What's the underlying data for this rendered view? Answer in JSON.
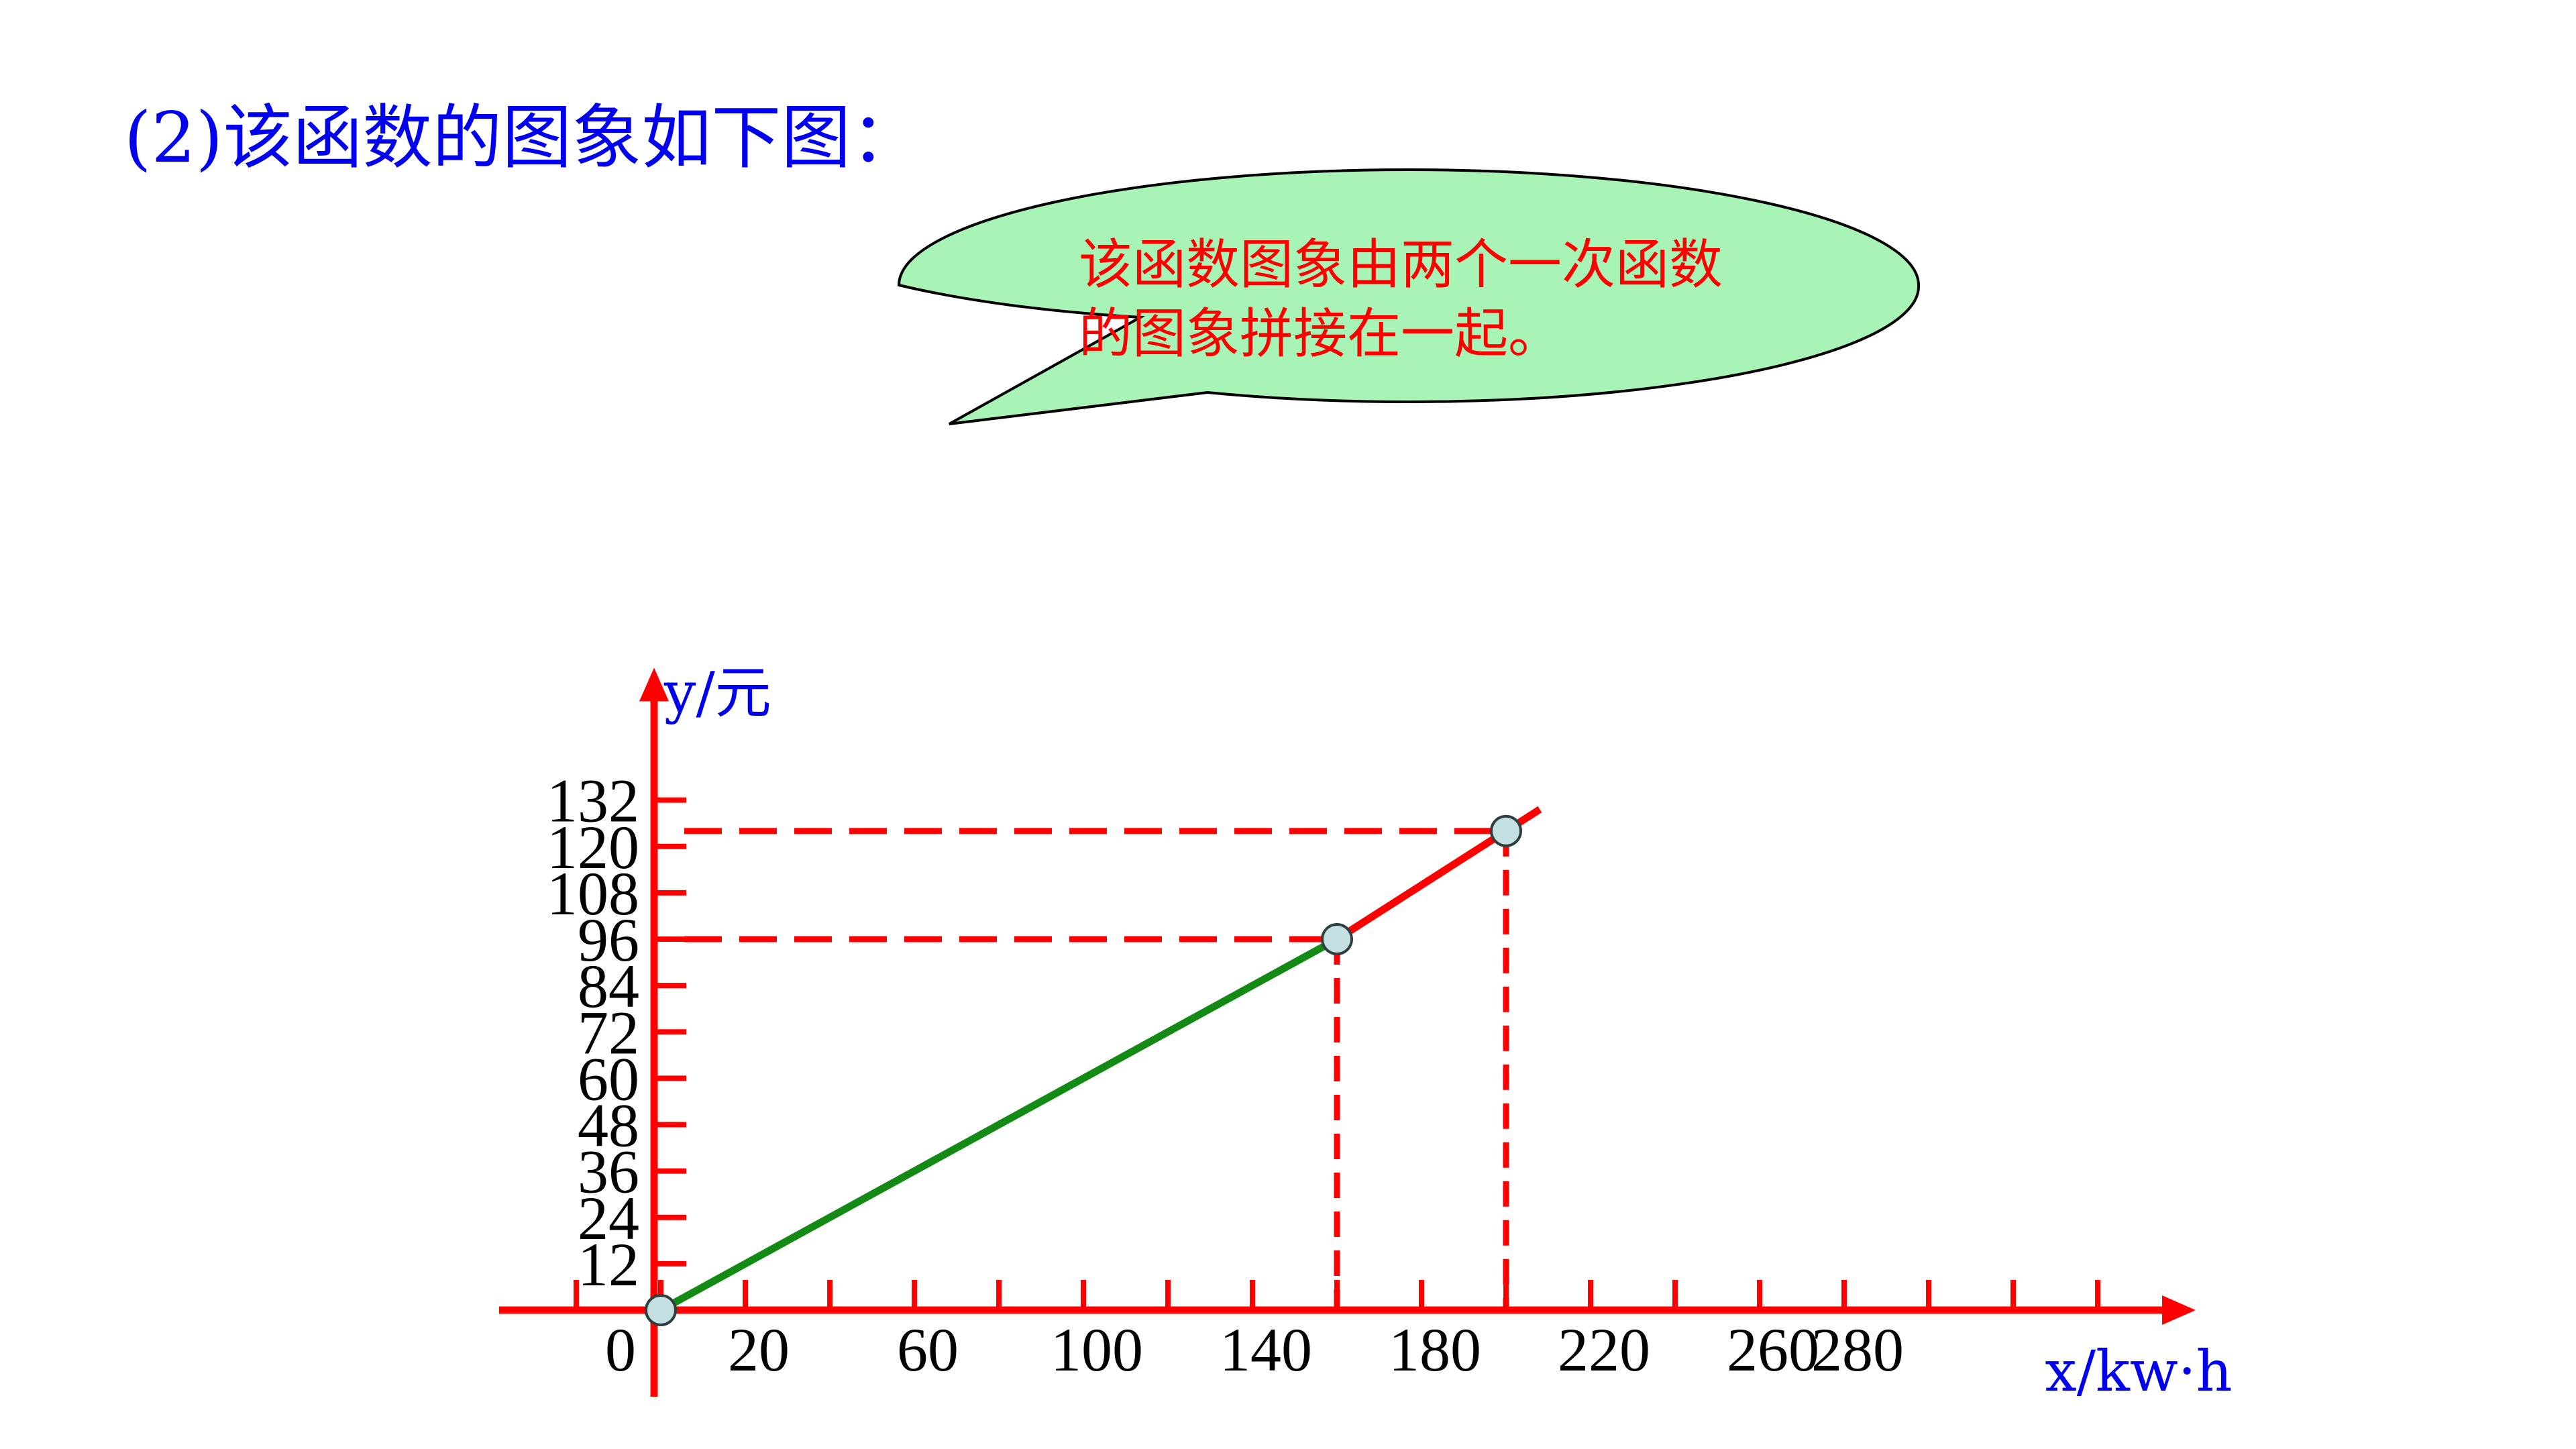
{
  "slide": {
    "heading": "(2)该函数的图象如下图："
  },
  "callout": {
    "line1": "该函数图象由两个一次函数",
    "line2": "的图象拼接在一起。"
  },
  "colors": {
    "axis": "#ff0000",
    "segment1": "#138a13",
    "segment2": "#ff0000",
    "guides": "#ff0000",
    "point_fill": "#c4dfe2",
    "bubble_fill": "#a8f4b6",
    "title_text": "#0000ee",
    "callout_text": "#ff0000"
  },
  "chart_data": {
    "type": "line",
    "title": "",
    "xlabel": "x/kw·h",
    "ylabel": "y/元",
    "xlim": [
      -20,
      360
    ],
    "ylim": [
      -20,
      160
    ],
    "x_tick_labels": [
      {
        "value": 0,
        "text": "0"
      },
      {
        "value": 20,
        "text": "20"
      },
      {
        "value": 60,
        "text": "60"
      },
      {
        "value": 100,
        "text": "100"
      },
      {
        "value": 140,
        "text": "140"
      },
      {
        "value": 180,
        "text": "180"
      },
      {
        "value": 220,
        "text": "220"
      },
      {
        "value": 260,
        "text": "260"
      },
      {
        "value": 280,
        "text": "280"
      }
    ],
    "x_tick_marks": [
      -20,
      0,
      20,
      40,
      60,
      80,
      100,
      120,
      140,
      160,
      180,
      200,
      220,
      240,
      260,
      280,
      300,
      320,
      340
    ],
    "y_ticks": [
      12,
      24,
      36,
      48,
      60,
      72,
      84,
      96,
      108,
      120,
      132
    ],
    "series": [
      {
        "x": [
          0,
          160
        ],
        "y": [
          0,
          96
        ],
        "color": "#138a13"
      },
      {
        "x": [
          160,
          200,
          208
        ],
        "y": [
          96,
          124,
          129.6
        ],
        "color": "#ff0000"
      }
    ],
    "key_points": [
      {
        "x": 0,
        "y": 0
      },
      {
        "x": 160,
        "y": 96
      },
      {
        "x": 200,
        "y": 124
      }
    ],
    "guide_lines": [
      {
        "x": 160,
        "y": 96
      },
      {
        "x": 200,
        "y": 124
      }
    ],
    "grid": false,
    "legend": "none"
  }
}
